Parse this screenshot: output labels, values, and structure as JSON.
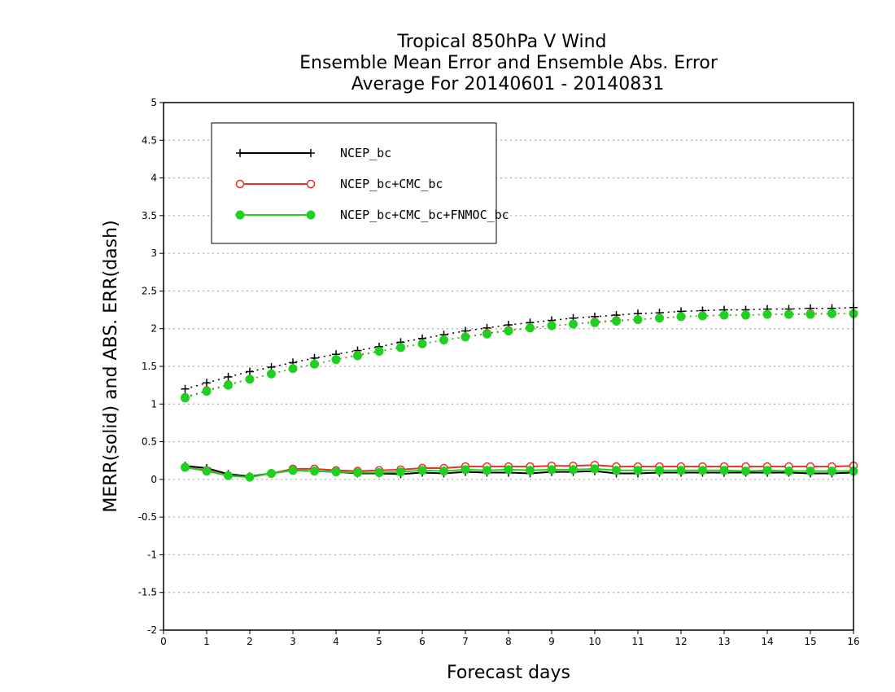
{
  "chart_data": {
    "type": "line",
    "title_lines": [
      "Tropical 850hPa V Wind",
      "Ensemble Mean Error and Ensemble Abs. Error",
      "Average For 20140601 - 20140831"
    ],
    "xlabel": "Forecast days",
    "ylabel": "MERR(solid) and ABS. ERR(dash)",
    "xlim": [
      0,
      16
    ],
    "ylim": [
      -2,
      5
    ],
    "xticks": [
      "0",
      "1",
      "2",
      "3",
      "4",
      "5",
      "6",
      "7",
      "8",
      "9",
      "10",
      "11",
      "12",
      "13",
      "14",
      "15",
      "16"
    ],
    "yticks": [
      "5",
      "4.5",
      "4",
      "3.5",
      "3",
      "2.5",
      "2",
      "1.5",
      "1",
      "0.5",
      "0",
      "-0.5",
      "-1",
      "-1.5",
      "-2"
    ],
    "grid": "horizontal dotted",
    "legend_position": "top-left",
    "x": [
      0.5,
      1,
      1.5,
      2,
      2.5,
      3,
      3.5,
      4,
      4.5,
      5,
      5.5,
      6,
      6.5,
      7,
      7.5,
      8,
      8.5,
      9,
      9.5,
      10,
      10.5,
      11,
      11.5,
      12,
      12.5,
      13,
      13.5,
      14,
      14.5,
      15,
      15.5,
      16
    ],
    "series": [
      {
        "name": "NCEP_bc",
        "color": "#000000",
        "marker": "plus",
        "merr": [
          0.18,
          0.15,
          0.07,
          0.04,
          0.08,
          0.12,
          0.11,
          0.1,
          0.08,
          0.08,
          0.07,
          0.09,
          0.08,
          0.1,
          0.09,
          0.09,
          0.08,
          0.1,
          0.1,
          0.11,
          0.08,
          0.08,
          0.09,
          0.09,
          0.09,
          0.09,
          0.09,
          0.09,
          0.09,
          0.08,
          0.08,
          0.09
        ],
        "abs_err": [
          1.2,
          1.28,
          1.36,
          1.43,
          1.49,
          1.55,
          1.61,
          1.66,
          1.71,
          1.76,
          1.82,
          1.87,
          1.92,
          1.97,
          2.01,
          2.05,
          2.08,
          2.11,
          2.14,
          2.16,
          2.18,
          2.2,
          2.21,
          2.23,
          2.24,
          2.25,
          2.25,
          2.26,
          2.26,
          2.27,
          2.27,
          2.28
        ]
      },
      {
        "name": "NCEP_bc+CMC_bc",
        "color": "#e8302a",
        "marker": "open-circle",
        "merr": [
          0.16,
          0.12,
          0.05,
          0.03,
          0.08,
          0.14,
          0.14,
          0.12,
          0.11,
          0.12,
          0.13,
          0.15,
          0.15,
          0.17,
          0.17,
          0.17,
          0.17,
          0.18,
          0.18,
          0.19,
          0.17,
          0.17,
          0.17,
          0.17,
          0.17,
          0.17,
          0.17,
          0.17,
          0.17,
          0.17,
          0.17,
          0.18
        ],
        "abs_err": [
          1.09,
          1.18,
          1.26,
          1.33,
          1.4,
          1.47,
          1.53,
          1.59,
          1.65,
          1.7,
          1.75,
          1.8,
          1.85,
          1.89,
          1.94,
          1.98,
          2.01,
          2.04,
          2.06,
          2.09,
          2.11,
          2.12,
          2.14,
          2.16,
          2.17,
          2.18,
          2.18,
          2.19,
          2.19,
          2.2,
          2.2,
          2.2
        ]
      },
      {
        "name": "NCEP_bc+CMC_bc+FNMOC_bc",
        "color": "#1fd11f",
        "marker": "filled-circle",
        "merr": [
          0.16,
          0.11,
          0.05,
          0.03,
          0.08,
          0.12,
          0.11,
          0.1,
          0.09,
          0.09,
          0.1,
          0.12,
          0.11,
          0.13,
          0.12,
          0.13,
          0.12,
          0.13,
          0.13,
          0.14,
          0.12,
          0.12,
          0.12,
          0.12,
          0.12,
          0.12,
          0.11,
          0.12,
          0.11,
          0.11,
          0.11,
          0.11
        ],
        "abs_err": [
          1.08,
          1.17,
          1.25,
          1.33,
          1.4,
          1.47,
          1.53,
          1.59,
          1.64,
          1.7,
          1.75,
          1.8,
          1.85,
          1.89,
          1.93,
          1.97,
          2.01,
          2.04,
          2.06,
          2.08,
          2.1,
          2.12,
          2.14,
          2.16,
          2.17,
          2.18,
          2.18,
          2.19,
          2.19,
          2.19,
          2.2,
          2.2
        ]
      }
    ]
  }
}
